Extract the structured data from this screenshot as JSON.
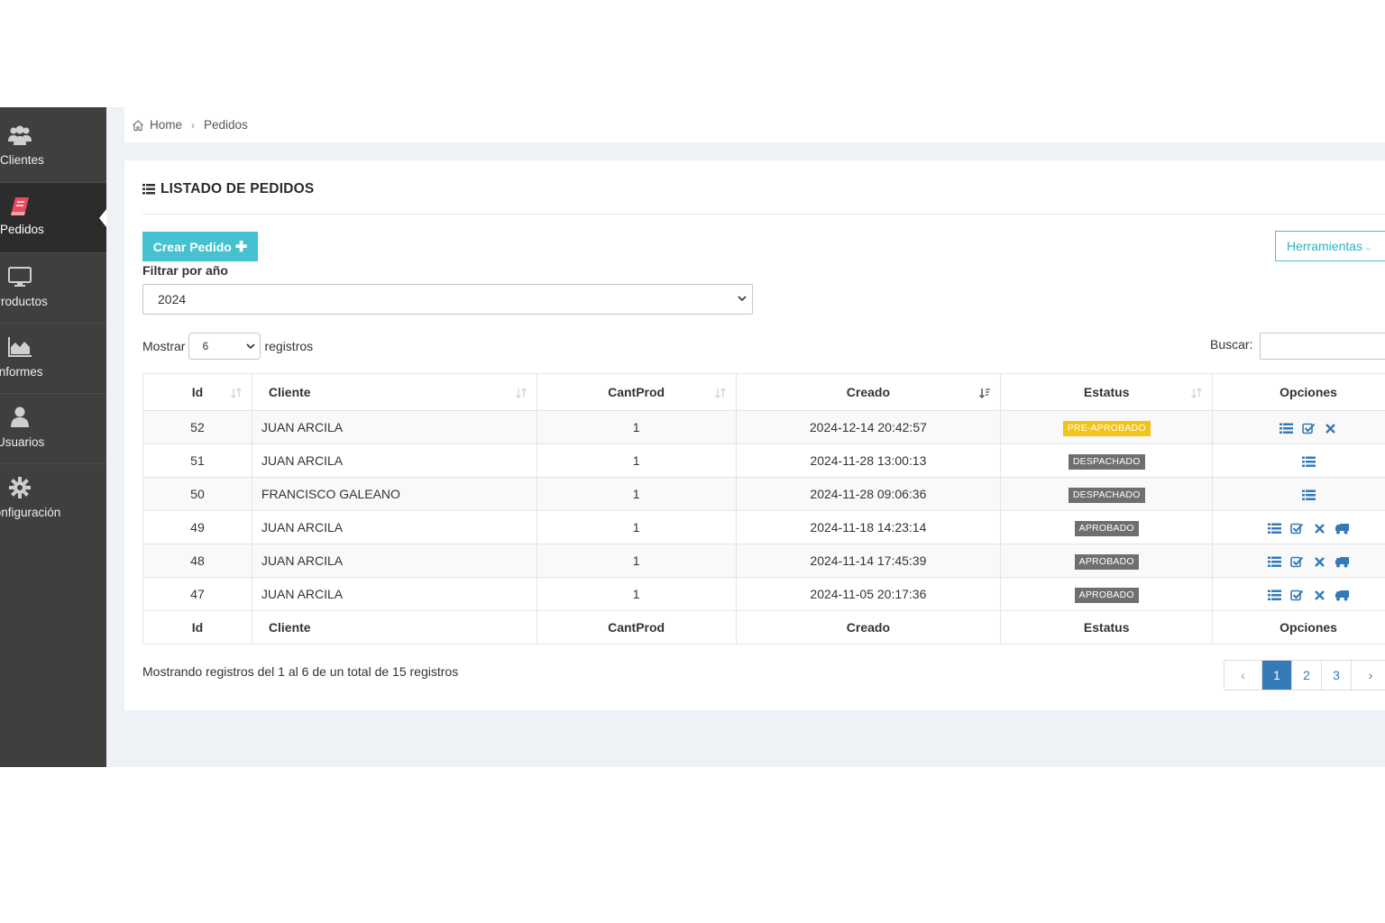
{
  "sidebar": {
    "items": [
      {
        "label": "Clientes",
        "icon": "users-icon",
        "active": false
      },
      {
        "label": "Pedidos",
        "icon": "book-icon",
        "active": true
      },
      {
        "label": "Productos",
        "icon": "desktop-icon",
        "active": false
      },
      {
        "label": "Informes",
        "icon": "area-chart-icon",
        "active": false
      },
      {
        "label": "Usuarios",
        "icon": "user-icon",
        "active": false
      },
      {
        "label": "Configuración",
        "icon": "gear-icon",
        "active": false
      }
    ]
  },
  "breadcrumb": {
    "home": "Home",
    "current": "Pedidos"
  },
  "panel": {
    "title": "LISTADO DE PEDIDOS",
    "create_button": "Crear Pedido",
    "tools_button": "Herramientas",
    "filter_label": "Filtrar por año",
    "year_selected": "2024"
  },
  "datatable": {
    "show_label": "Mostrar",
    "page_length": "6",
    "records_label": "registros",
    "search_label": "Buscar:",
    "search_value": "",
    "info": "Mostrando registros del 1 al 6 de un total de 15 registros"
  },
  "table": {
    "columns": [
      "Id",
      "Cliente",
      "CantProd",
      "Creado",
      "Estatus",
      "Opciones"
    ],
    "rows": [
      {
        "id": "52",
        "cliente": "JUAN ARCILA",
        "cant": "1",
        "creado": "2024-12-14 20:42:57",
        "estatus": "PRE-APROBADO"
      },
      {
        "id": "51",
        "cliente": "JUAN ARCILA",
        "cant": "1",
        "creado": "2024-11-28 13:00:13",
        "estatus": "DESPACHADO"
      },
      {
        "id": "50",
        "cliente": "FRANCISCO GALEANO",
        "cant": "1",
        "creado": "2024-11-28 09:06:36",
        "estatus": "DESPACHADO"
      },
      {
        "id": "49",
        "cliente": "JUAN ARCILA",
        "cant": "1",
        "creado": "2024-11-18 14:23:14",
        "estatus": "APROBADO"
      },
      {
        "id": "48",
        "cliente": "JUAN ARCILA",
        "cant": "1",
        "creado": "2024-11-14 17:45:39",
        "estatus": "APROBADO"
      },
      {
        "id": "47",
        "cliente": "JUAN ARCILA",
        "cant": "1",
        "creado": "2024-11-05 20:17:36",
        "estatus": "APROBADO"
      }
    ]
  },
  "pagination": {
    "prev": "‹",
    "pages": [
      "1",
      "2",
      "3"
    ],
    "next": "›",
    "current": "1"
  },
  "colors": {
    "sidebar_bg": "#3f3f3f",
    "active_icon": "#e84a5f",
    "accent": "#45c1cf",
    "pre_aprobado": "#f0c419",
    "status_gray": "#6f6f6f",
    "link_blue": "#337ab7"
  }
}
